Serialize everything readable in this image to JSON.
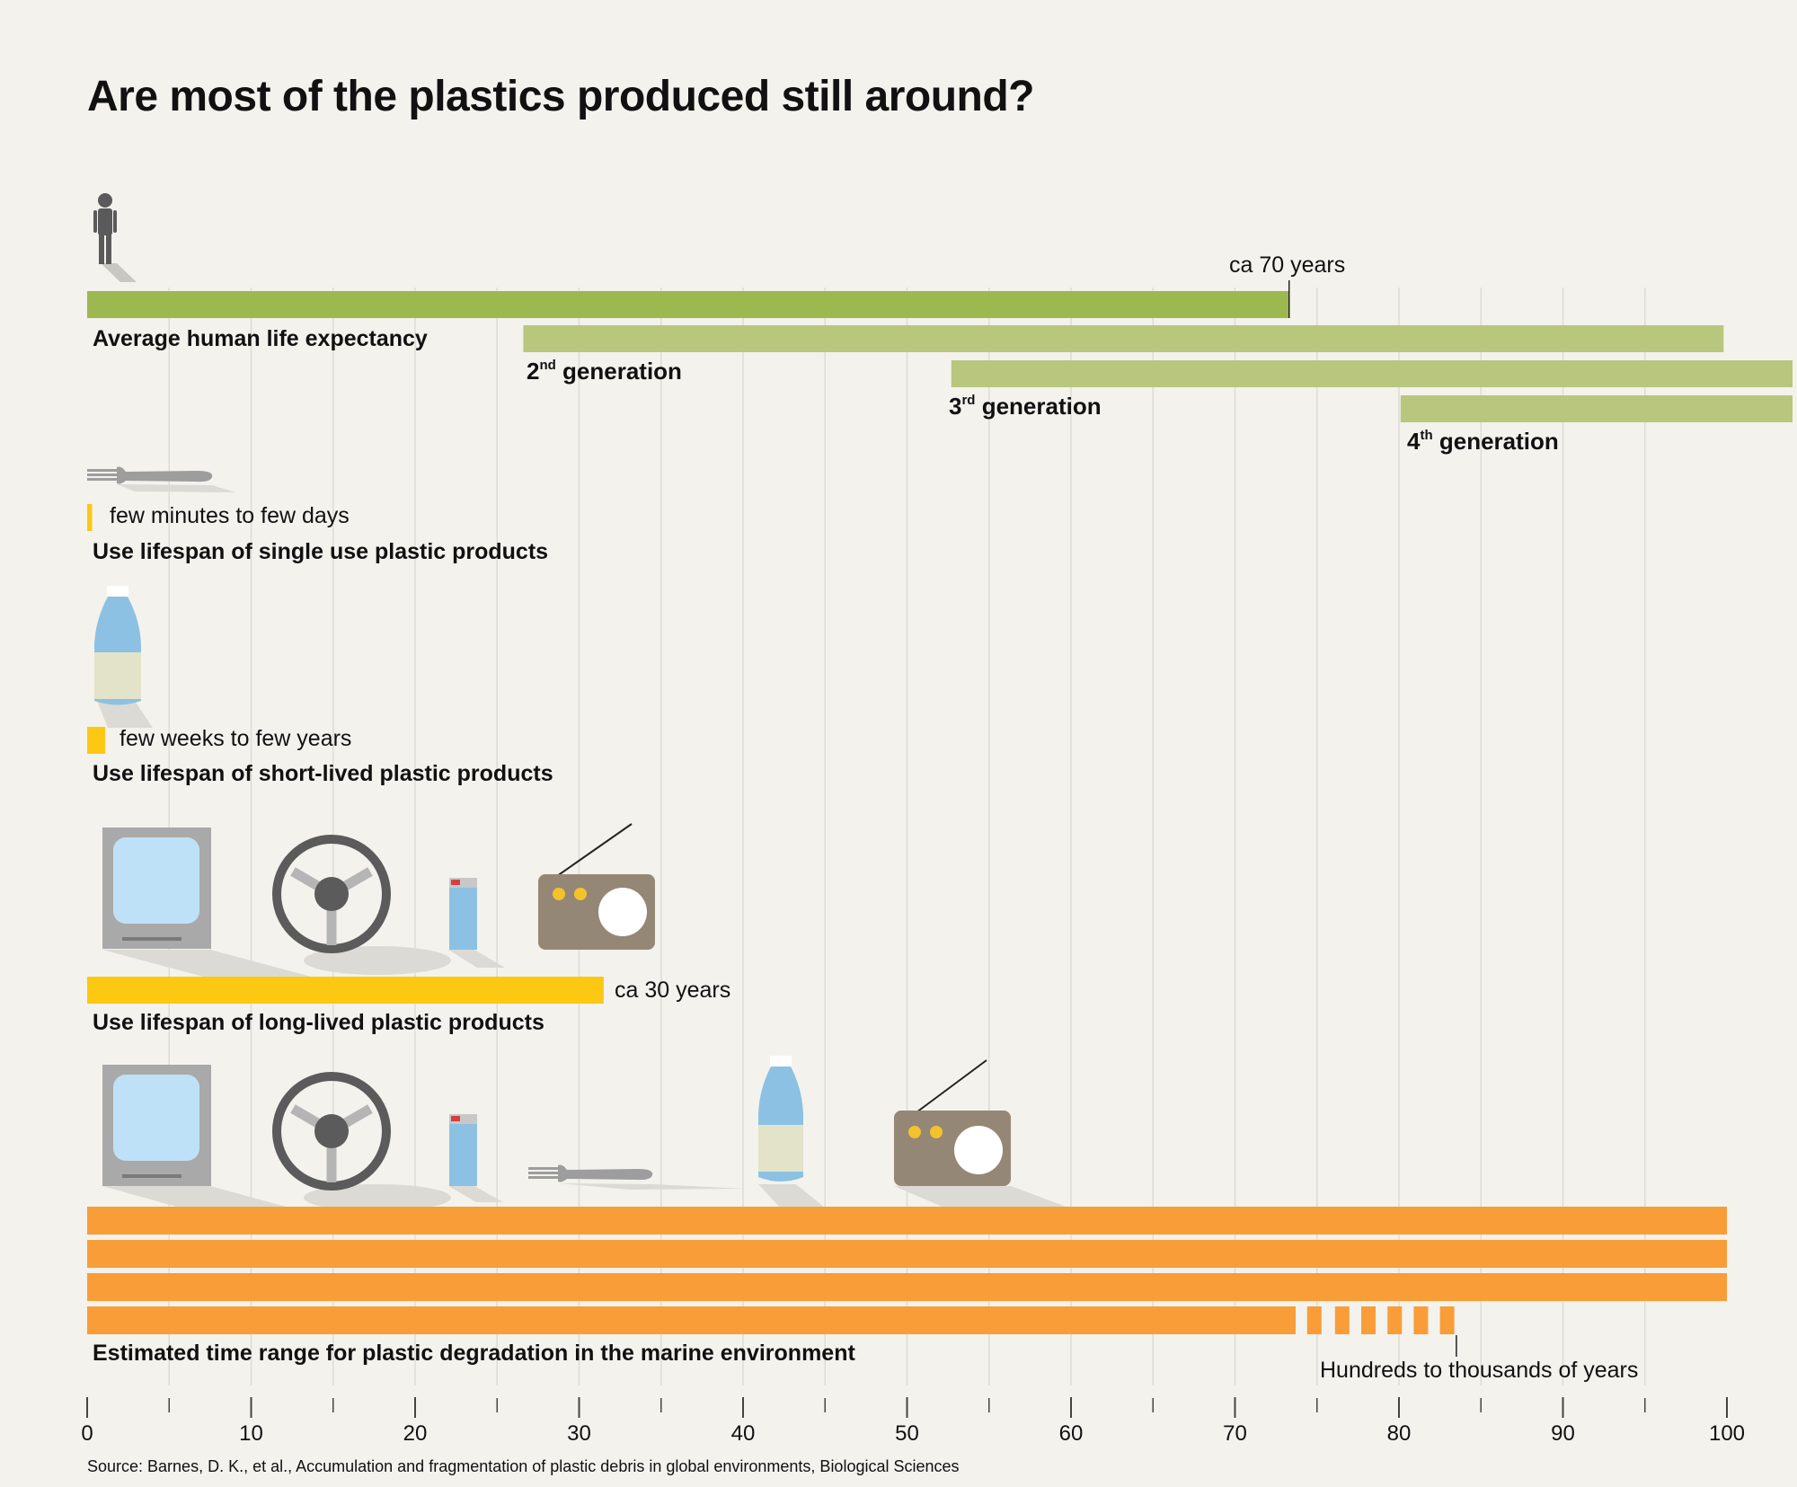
{
  "title": "Are most of the plastics produced still around?",
  "source": "Source: Barnes, D. K., et al., Accumulation and fragmentation of plastic debris in global environments, Biological Sciences",
  "icons": [
    "person-icon",
    "fork-icon",
    "bottle-icon",
    "tv-icon",
    "steering-wheel-icon",
    "lighter-icon",
    "radio-icon"
  ],
  "colors": {
    "human_dark": "#9db84e",
    "human_light": "#b8c77d",
    "product": "#fcc812",
    "degradation": "#f99d39",
    "grid": "#dedcd5",
    "axis": "#444444"
  },
  "chart_data": {
    "type": "bar",
    "x_axis": {
      "range": [
        0,
        100
      ],
      "ticks": [
        0,
        10,
        20,
        30,
        40,
        50,
        60,
        70,
        80,
        90,
        100
      ],
      "minor_ticks": [
        5,
        15,
        25,
        35,
        45,
        55,
        65,
        75,
        85,
        95
      ]
    },
    "series": [
      {
        "name": "Average human life expectancy",
        "start": 0,
        "end": 73.3,
        "annotation": "ca 70 years"
      },
      {
        "name": "2nd generation",
        "ord": "2",
        "sup": "nd",
        "word": "generation",
        "start": 26.6,
        "end": 99.8
      },
      {
        "name": "3rd generation",
        "ord": "3",
        "sup": "rd",
        "word": "generation",
        "start": 52.7,
        "end": 104
      },
      {
        "name": "4th generation",
        "ord": "4",
        "sup": "th",
        "word": "generation",
        "start": 80.1,
        "end": 104
      },
      {
        "name": "Use lifespan of single use plastic products",
        "start": 0,
        "end": 0.3,
        "annotation": "few minutes to few days"
      },
      {
        "name": "Use lifespan of short-lived plastic products",
        "start": 0,
        "end": 1.1,
        "annotation": "few weeks to few years"
      },
      {
        "name": "Use lifespan of long-lived plastic products",
        "start": 0,
        "end": 31.5,
        "annotation": "ca 30 years"
      },
      {
        "name": "Estimated time range for plastic degradation in the marine environment",
        "start": 0,
        "end": 100,
        "annotation": "Hundreds to thousands of years"
      }
    ]
  }
}
